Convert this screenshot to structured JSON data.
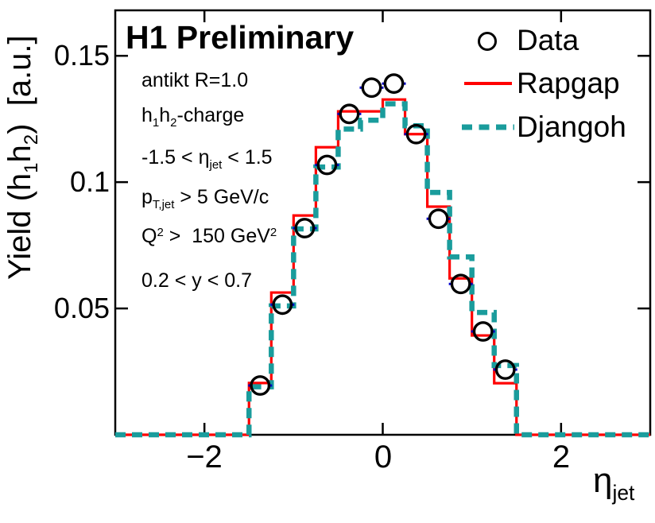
{
  "title": "H1 Preliminary",
  "colors": {
    "rapgap": "#ff0000",
    "djangoh": "#1a9c9c",
    "data_marker": "#000000",
    "error_bar": "#0000cc",
    "frame": "#000000"
  },
  "annotations": {
    "antikt": "antikt R=1.0",
    "charge": {
      "p1": "h",
      "s1": "1",
      "p2": "h",
      "s2": "2",
      "p3": "-charge"
    },
    "eta_cut": {
      "p1": "-1.5 < ",
      "sym": "η",
      "sub": "jet",
      "p2": " < 1.5"
    },
    "pt_cut": {
      "p1": "p",
      "sub": "T,jet",
      "p2": " > 5 GeV/c"
    },
    "q2_cut": {
      "p1": "Q",
      "sup1": "2",
      "p2": " >  150 GeV",
      "sup2": "2"
    },
    "y_cut": "0.2 < y < 0.7"
  },
  "legend": {
    "data_label": "Data",
    "rapgap_label": "Rapgap",
    "djangoh_label": "Djangoh"
  },
  "axes": {
    "y_label": {
      "p1": "Yield (h",
      "s1": "1",
      "p2": "h",
      "s2": "2",
      "p3": ")  [a.u.]"
    },
    "x_label": {
      "sym": "η",
      "sub": "jet"
    },
    "y_tick_labels": [
      "0.05",
      "0.1",
      "0.15"
    ],
    "x_tick_labels": [
      "−2",
      "0",
      "2"
    ]
  },
  "chart_data": {
    "type": "line",
    "subtype": "step-histogram with open-circle scatter overlay",
    "title": "H1 Preliminary",
    "xlabel": "eta_jet",
    "ylabel": "Yield (h1h2) [a.u.]",
    "xlim": [
      -3,
      3
    ],
    "ylim": [
      0,
      0.168
    ],
    "x_ticks": [
      -2,
      0,
      2
    ],
    "y_ticks": [
      0.05,
      0.1,
      0.15
    ],
    "grid": false,
    "legend_position": "top-right",
    "bin_edges": [
      -1.5,
      -1.25,
      -1.0,
      -0.75,
      -0.5,
      -0.25,
      0.0,
      0.25,
      0.5,
      0.75,
      1.0,
      1.25,
      1.5
    ],
    "bin_centers": [
      -1.375,
      -1.125,
      -0.875,
      -0.625,
      -0.375,
      -0.125,
      0.125,
      0.375,
      0.625,
      0.875,
      1.125,
      1.375
    ],
    "outside_range_value": 0,
    "series": [
      {
        "name": "Data",
        "style": "scatter-open-circle",
        "color": "#000000",
        "values": [
          0.0195,
          0.0515,
          0.0818,
          0.1068,
          0.127,
          0.1374,
          0.139,
          0.119,
          0.0855,
          0.0597,
          0.0409,
          0.0258
        ]
      },
      {
        "name": "Rapgap",
        "style": "solid-step",
        "color": "#ff0000",
        "values": [
          0.0205,
          0.0563,
          0.0868,
          0.1138,
          0.128,
          0.128,
          0.1327,
          0.119,
          0.0903,
          0.0619,
          0.0393,
          0.0204
        ]
      },
      {
        "name": "Djangoh",
        "style": "dashed-step",
        "color": "#1a9c9c",
        "values": [
          0.019,
          0.051,
          0.0815,
          0.106,
          0.121,
          0.1245,
          0.131,
          0.1223,
          0.0959,
          0.0704,
          0.0484,
          0.0274
        ]
      }
    ]
  }
}
